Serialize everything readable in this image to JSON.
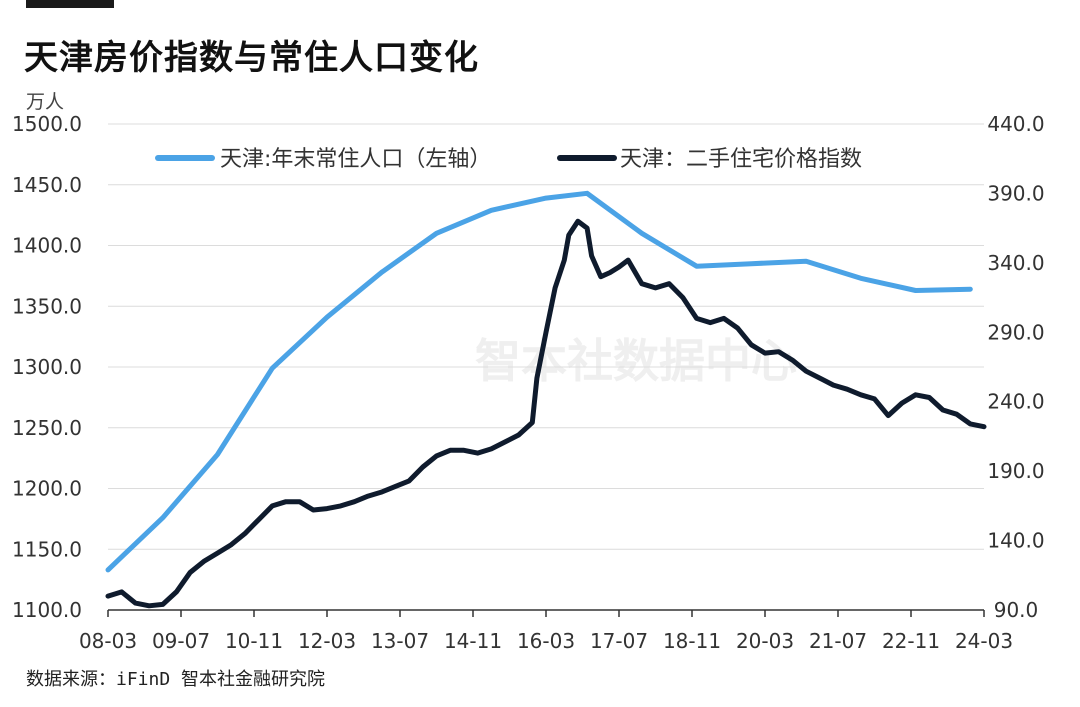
{
  "page": {
    "title": "天津房价指数与常住人口变化",
    "source": "数据来源：iFinD 智本社金融研究院",
    "watermark": "智本社数据中心"
  },
  "chart_data": {
    "type": "line",
    "title": "天津房价指数与常住人口变化",
    "left_unit": "万人",
    "colors": {
      "population": "#4ba3e6",
      "price_index": "#0f1b2d",
      "grid": "#dcdcdc"
    },
    "legend_placement": "top-center",
    "grid": true,
    "x_ticks": [
      "08-03",
      "09-07",
      "10-11",
      "12-03",
      "13-07",
      "14-11",
      "16-03",
      "17-07",
      "18-11",
      "20-03",
      "21-07",
      "22-11",
      "24-03"
    ],
    "y_left": {
      "range": [
        1100,
        1500
      ],
      "ticks": [
        "1100.0",
        "1150.0",
        "1200.0",
        "1250.0",
        "1300.0",
        "1350.0",
        "1400.0",
        "1450.0",
        "1500.0"
      ]
    },
    "y_right": {
      "range": [
        90,
        440
      ],
      "ticks": [
        "90.0",
        "140.0",
        "190.0",
        "240.0",
        "290.0",
        "340.0",
        "390.0",
        "440.0"
      ]
    },
    "series": [
      {
        "name": "天津:年末常住人口（左轴）",
        "axis": "left",
        "x": [
          "2008-03",
          "2009-03",
          "2010-03",
          "2011-03",
          "2012-03",
          "2013-03",
          "2014-03",
          "2015-03",
          "2016-03",
          "2016-12",
          "2017-12",
          "2018-12",
          "2019-12",
          "2020-12",
          "2021-12",
          "2022-12",
          "2023-12"
        ],
        "values": [
          1133,
          1176,
          1228,
          1299,
          1341,
          1378,
          1410,
          1429,
          1439,
          1443,
          1410,
          1383,
          1385,
          1387,
          1373,
          1363,
          1364
        ]
      },
      {
        "name": "天津：二手住宅价格指数",
        "axis": "right",
        "x": [
          "2008-03",
          "2008-06",
          "2008-09",
          "2008-12",
          "2009-03",
          "2009-06",
          "2009-09",
          "2009-12",
          "2010-03",
          "2010-06",
          "2010-09",
          "2010-12",
          "2011-03",
          "2011-06",
          "2011-09",
          "2011-12",
          "2012-03",
          "2012-06",
          "2012-09",
          "2012-12",
          "2013-03",
          "2013-06",
          "2013-09",
          "2013-12",
          "2014-03",
          "2014-06",
          "2014-09",
          "2014-12",
          "2015-03",
          "2015-06",
          "2015-09",
          "2015-12",
          "2016-01",
          "2016-03",
          "2016-05",
          "2016-07",
          "2016-08",
          "2016-10",
          "2016-12",
          "2017-01",
          "2017-03",
          "2017-05",
          "2017-07",
          "2017-09",
          "2017-12",
          "2018-03",
          "2018-06",
          "2018-09",
          "2018-12",
          "2019-03",
          "2019-06",
          "2019-09",
          "2019-12",
          "2020-03",
          "2020-06",
          "2020-09",
          "2020-12",
          "2021-03",
          "2021-06",
          "2021-09",
          "2021-12",
          "2022-03",
          "2022-06",
          "2022-09",
          "2022-12",
          "2023-03",
          "2023-06",
          "2023-09",
          "2023-12",
          "2024-03"
        ],
        "values": [
          100,
          103,
          95,
          93,
          94,
          103,
          117,
          125,
          131,
          137,
          145,
          155,
          165,
          168,
          168,
          162,
          163,
          165,
          168,
          172,
          175,
          179,
          183,
          193,
          201,
          205,
          205,
          203,
          206,
          211,
          216,
          225,
          257,
          290,
          322,
          342,
          360,
          370,
          365,
          345,
          330,
          333,
          337,
          342,
          325,
          322,
          325,
          315,
          300,
          297,
          300,
          293,
          281,
          275,
          276,
          270,
          262,
          257,
          252,
          249,
          245,
          242,
          230,
          239,
          245,
          243,
          234,
          231,
          224,
          222
        ]
      }
    ]
  }
}
